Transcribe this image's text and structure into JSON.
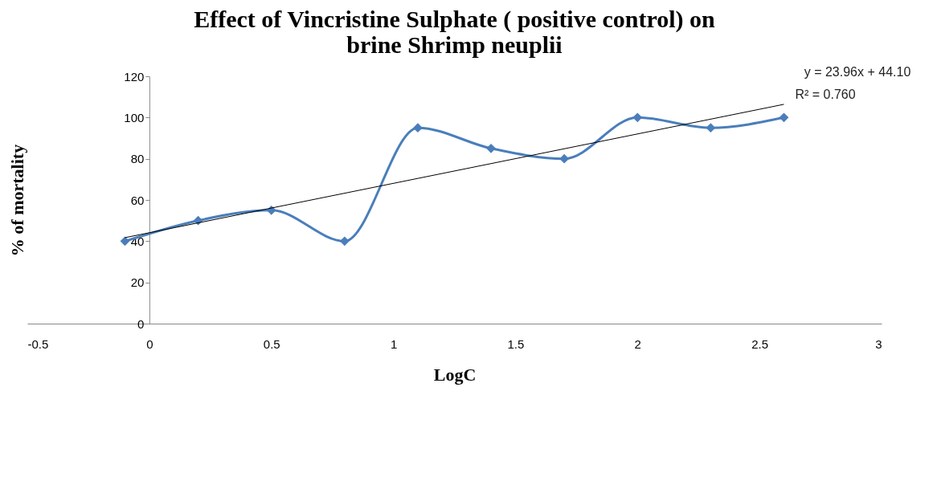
{
  "chart_data": {
    "type": "line",
    "title": "Effect of Vincristine Sulphate ( positive control) on brine Shrimp neuplii",
    "xlabel": "LogC",
    "ylabel": "% of mortality",
    "series": [
      {
        "type": "line",
        "color": "#4a7ebb",
        "marker": "diamond",
        "x": [
          -0.1,
          0.2,
          0.5,
          0.8,
          1.1,
          1.4,
          1.7,
          2.0,
          2.3,
          2.6
        ],
        "values": [
          40,
          50,
          55,
          40,
          95,
          85,
          80,
          100,
          95,
          100
        ]
      },
      {
        "type": "line",
        "color": "#000000",
        "marker": "none",
        "x": [
          -0.1,
          2.6
        ],
        "values": [
          41.7,
          106.4
        ]
      }
    ],
    "annotations": [
      "y = 23.96x + 44.10",
      "R² = 0.760"
    ],
    "xlim": [
      -0.5,
      3
    ],
    "xticks": [
      -0.5,
      0,
      0.5,
      1,
      1.5,
      2,
      2.5,
      3
    ],
    "ylim": [
      0,
      120
    ],
    "yticks": [
      0,
      20,
      40,
      60,
      80,
      100,
      120
    ]
  }
}
